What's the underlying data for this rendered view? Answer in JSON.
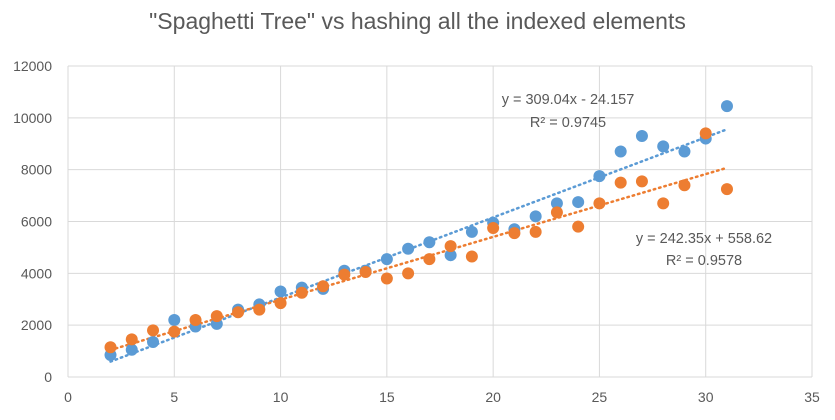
{
  "chart_data": {
    "type": "scatter",
    "title": "\"Spaghetti Tree\" vs hashing all the indexed elements",
    "xlabel": "",
    "ylabel": "",
    "xlim": [
      0,
      35
    ],
    "ylim": [
      0,
      12000
    ],
    "x_ticks": [
      "0",
      "5",
      "10",
      "15",
      "20",
      "25",
      "30",
      "35"
    ],
    "y_ticks": [
      "0",
      "2000",
      "4000",
      "6000",
      "8000",
      "10000",
      "12000"
    ],
    "grid": true,
    "legend": "none",
    "series": [
      {
        "color": "#5b9bd5",
        "points": [
          [
            2,
            850
          ],
          [
            3,
            1050
          ],
          [
            4,
            1350
          ],
          [
            5,
            2200
          ],
          [
            6,
            1950
          ],
          [
            7,
            2050
          ],
          [
            8,
            2600
          ],
          [
            9,
            2800
          ],
          [
            10,
            3300
          ],
          [
            11,
            3450
          ],
          [
            12,
            3400
          ],
          [
            13,
            4100
          ],
          [
            14,
            4100
          ],
          [
            15,
            4550
          ],
          [
            16,
            4950
          ],
          [
            17,
            5200
          ],
          [
            18,
            4700
          ],
          [
            19,
            5600
          ],
          [
            20,
            5950
          ],
          [
            21,
            5700
          ],
          [
            22,
            6200
          ],
          [
            23,
            6700
          ],
          [
            24,
            6750
          ],
          [
            25,
            7750
          ],
          [
            26,
            8700
          ],
          [
            27,
            9300
          ],
          [
            28,
            8900
          ],
          [
            29,
            8700
          ],
          [
            30,
            9200
          ],
          [
            31,
            10450
          ]
        ],
        "trendline": {
          "slope": 309.04,
          "intercept": -24.157,
          "label": "y = 309.04x - 24.157",
          "r2_label": "R² = 0.9745"
        }
      },
      {
        "color": "#ed7d31",
        "points": [
          [
            2,
            1150
          ],
          [
            3,
            1450
          ],
          [
            4,
            1800
          ],
          [
            5,
            1750
          ],
          [
            6,
            2200
          ],
          [
            7,
            2350
          ],
          [
            8,
            2500
          ],
          [
            9,
            2600
          ],
          [
            10,
            2850
          ],
          [
            11,
            3250
          ],
          [
            12,
            3500
          ],
          [
            13,
            3950
          ],
          [
            14,
            4050
          ],
          [
            15,
            3800
          ],
          [
            16,
            4000
          ],
          [
            17,
            4550
          ],
          [
            18,
            5050
          ],
          [
            19,
            4650
          ],
          [
            20,
            5750
          ],
          [
            21,
            5550
          ],
          [
            22,
            5600
          ],
          [
            23,
            6350
          ],
          [
            24,
            5800
          ],
          [
            25,
            6700
          ],
          [
            26,
            7500
          ],
          [
            27,
            7550
          ],
          [
            28,
            6700
          ],
          [
            29,
            7400
          ],
          [
            30,
            9400
          ],
          [
            31,
            7250
          ]
        ],
        "trendline": {
          "slope": 242.35,
          "intercept": 558.62,
          "label": "y = 242.35x + 558.62",
          "r2_label": "R² = 0.9578"
        }
      }
    ],
    "gridline_color": "#d9d9d9"
  }
}
